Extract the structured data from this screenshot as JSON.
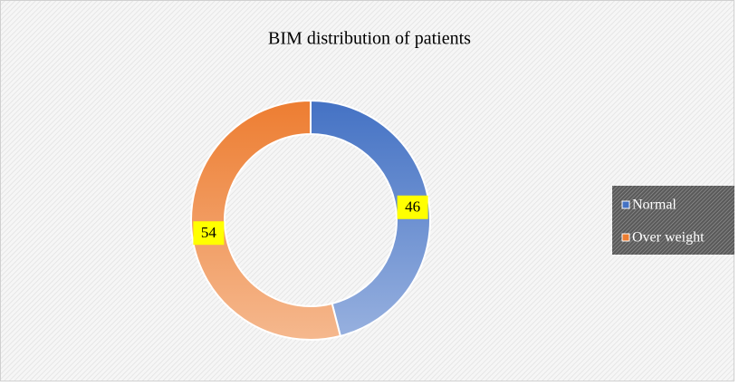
{
  "chart_data": {
    "type": "donut",
    "title": "BIM distribution of patients",
    "categories": [
      "Normal",
      "Over weight"
    ],
    "values": [
      46,
      54
    ],
    "colors": [
      "#4472c4",
      "#ed7d31"
    ],
    "legend": "right"
  }
}
